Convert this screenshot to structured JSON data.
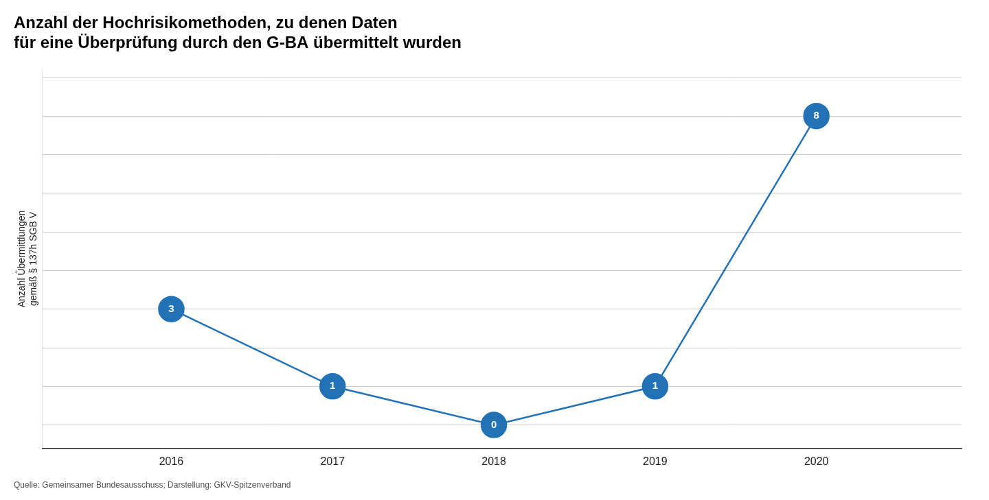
{
  "chart_data": {
    "type": "line",
    "title": [
      "Anzahl der Hochrisikomethoden, zu denen Daten",
      "für eine Überprüfung durch den G-BA übermittelt wurden"
    ],
    "ylabel": [
      "Anzahl Übermittlungen",
      "gemäß § 137h SGB V"
    ],
    "annotations": [
      "Quelle: Gemeinsamer Bundesausschuss; Darstellung: GKV-Spitzenverband"
    ],
    "x": [
      2016,
      2017,
      2018,
      2019,
      2020
    ],
    "values": [
      3,
      1,
      0,
      1,
      8
    ],
    "color": "#2272b5",
    "xlim": [
      2015.2,
      2020.9
    ],
    "xticks": [
      2016,
      2017,
      2018,
      2019,
      2020
    ],
    "ylim": [
      -0.6,
      9.2
    ],
    "yticks": [
      0,
      1,
      2,
      3,
      4,
      5,
      6,
      7,
      8,
      9
    ],
    "grid": true,
    "data_labels": true,
    "tick_labels": "x"
  }
}
